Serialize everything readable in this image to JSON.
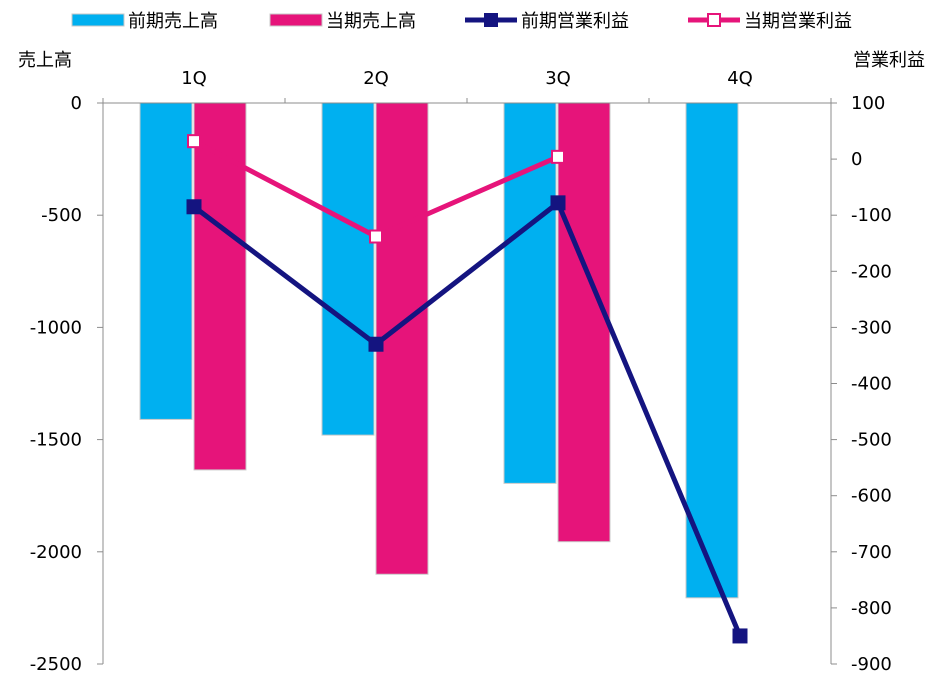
{
  "chart_data": {
    "type": "bar",
    "title": "",
    "categories": [
      "1Q",
      "2Q",
      "3Q",
      "4Q"
    ],
    "left_axis": {
      "label": "売上高",
      "ylim": [
        -2500,
        0
      ],
      "ticks": [
        0,
        -500,
        -1000,
        -1500,
        -2000,
        -2500
      ],
      "tick_labels": [
        "0",
        "-500",
        "-1000",
        "-1500",
        "-2000",
        "-2500"
      ]
    },
    "right_axis": {
      "label": "営業利益",
      "ylim": [
        -900,
        100
      ],
      "ticks": [
        100,
        0,
        -100,
        -200,
        -300,
        -400,
        -500,
        -600,
        -700,
        -800,
        -900
      ],
      "tick_labels": [
        "100",
        "0",
        "-100",
        "-200",
        "-300",
        "-400",
        "-500",
        "-600",
        "-700",
        "-800",
        "-900"
      ]
    },
    "x_axis_position": "top",
    "grid": false,
    "legend_position": "top",
    "series": [
      {
        "name": "前期売上高",
        "type": "bar",
        "axis": "left",
        "color": "#00B0F0",
        "values": [
          -1410,
          -1480,
          -1695,
          -2205
        ]
      },
      {
        "name": "当期売上高",
        "type": "bar",
        "axis": "left",
        "color": "#E6147A",
        "values": [
          -1635,
          -2100,
          -1955,
          null
        ]
      },
      {
        "name": "前期営業利益",
        "type": "line",
        "axis": "right",
        "color": "#141480",
        "marker": "filled-square",
        "values": [
          -85,
          -330,
          -78,
          -850
        ]
      },
      {
        "name": "当期営業利益",
        "type": "line",
        "axis": "right",
        "color": "#E6147A",
        "marker": "open-square",
        "values": [
          32,
          -138,
          4,
          null
        ]
      }
    ]
  }
}
